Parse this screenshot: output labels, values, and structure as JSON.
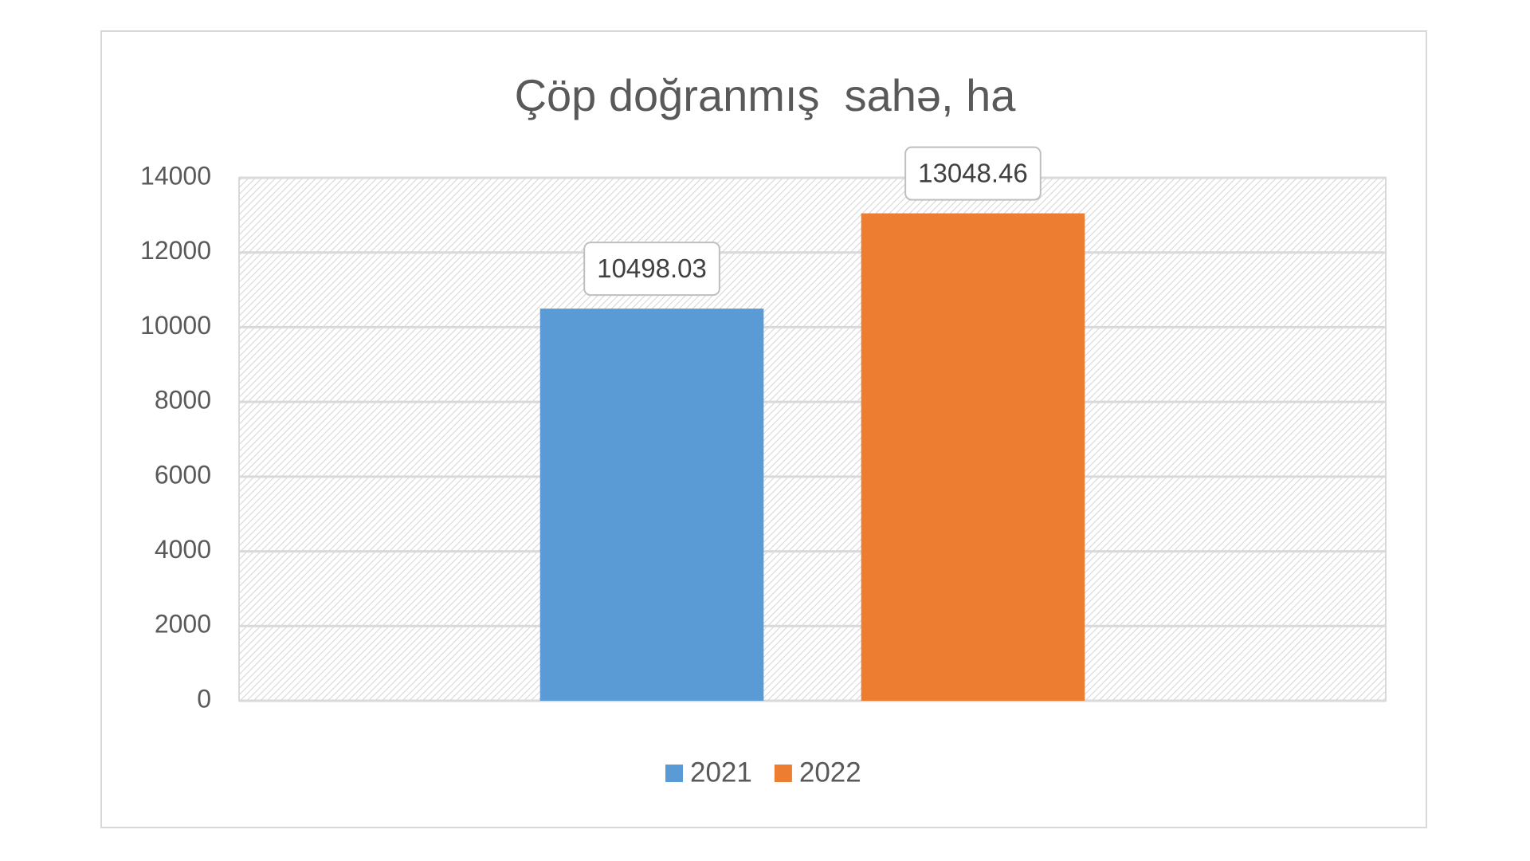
{
  "chart_data": {
    "type": "bar",
    "title": "Çöp doğranmış  sahə, ha",
    "categories": [
      null
    ],
    "series": [
      {
        "name": "2021",
        "color": "#5b9bd5",
        "values": [
          10498.03
        ]
      },
      {
        "name": "2022",
        "color": "#ed7d31",
        "values": [
          13048.46
        ]
      }
    ],
    "ylim": [
      0,
      14000
    ],
    "yticks": [
      0,
      2000,
      4000,
      6000,
      8000,
      10000,
      12000,
      14000
    ],
    "grid": true,
    "legend": "bottom"
  }
}
